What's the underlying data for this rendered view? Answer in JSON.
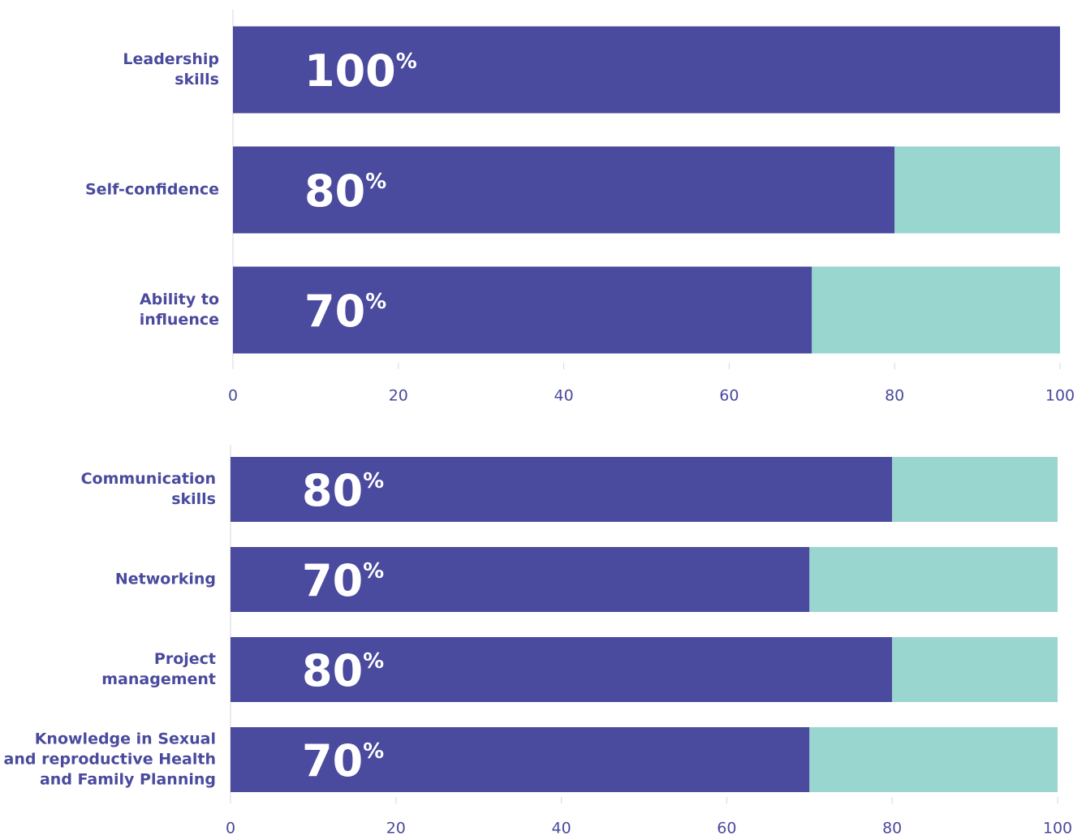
{
  "chart_data": [
    {
      "type": "bar",
      "orientation": "horizontal",
      "stacked": true,
      "categories": [
        "Leadership\nskills",
        "Self-confidence",
        "Ability to\ninfluence"
      ],
      "series": [
        {
          "color": "#4a4a9e",
          "values": [
            100,
            80,
            70
          ],
          "value_labels": [
            "100%",
            "80%",
            "70%"
          ]
        },
        {
          "color": "#98d6cf",
          "values": [
            0,
            20,
            30
          ]
        }
      ],
      "xlim": [
        0,
        100
      ],
      "xticks": [
        0,
        20,
        40,
        60,
        80,
        100
      ]
    },
    {
      "type": "bar",
      "orientation": "horizontal",
      "stacked": true,
      "categories": [
        "Communication\nskills",
        "Networking",
        "Project\nmanagement",
        "Knowledge in Sexual\nand reproductive Health\nand Family Planning"
      ],
      "series": [
        {
          "color": "#4a4a9e",
          "values": [
            80,
            70,
            80,
            70
          ],
          "value_labels": [
            "80%",
            "70%",
            "80%",
            "70%"
          ]
        },
        {
          "color": "#98d6cf",
          "values": [
            20,
            30,
            20,
            30
          ]
        }
      ],
      "xlim": [
        0,
        100
      ],
      "xticks": [
        0,
        20,
        40,
        60,
        80,
        100
      ]
    }
  ]
}
